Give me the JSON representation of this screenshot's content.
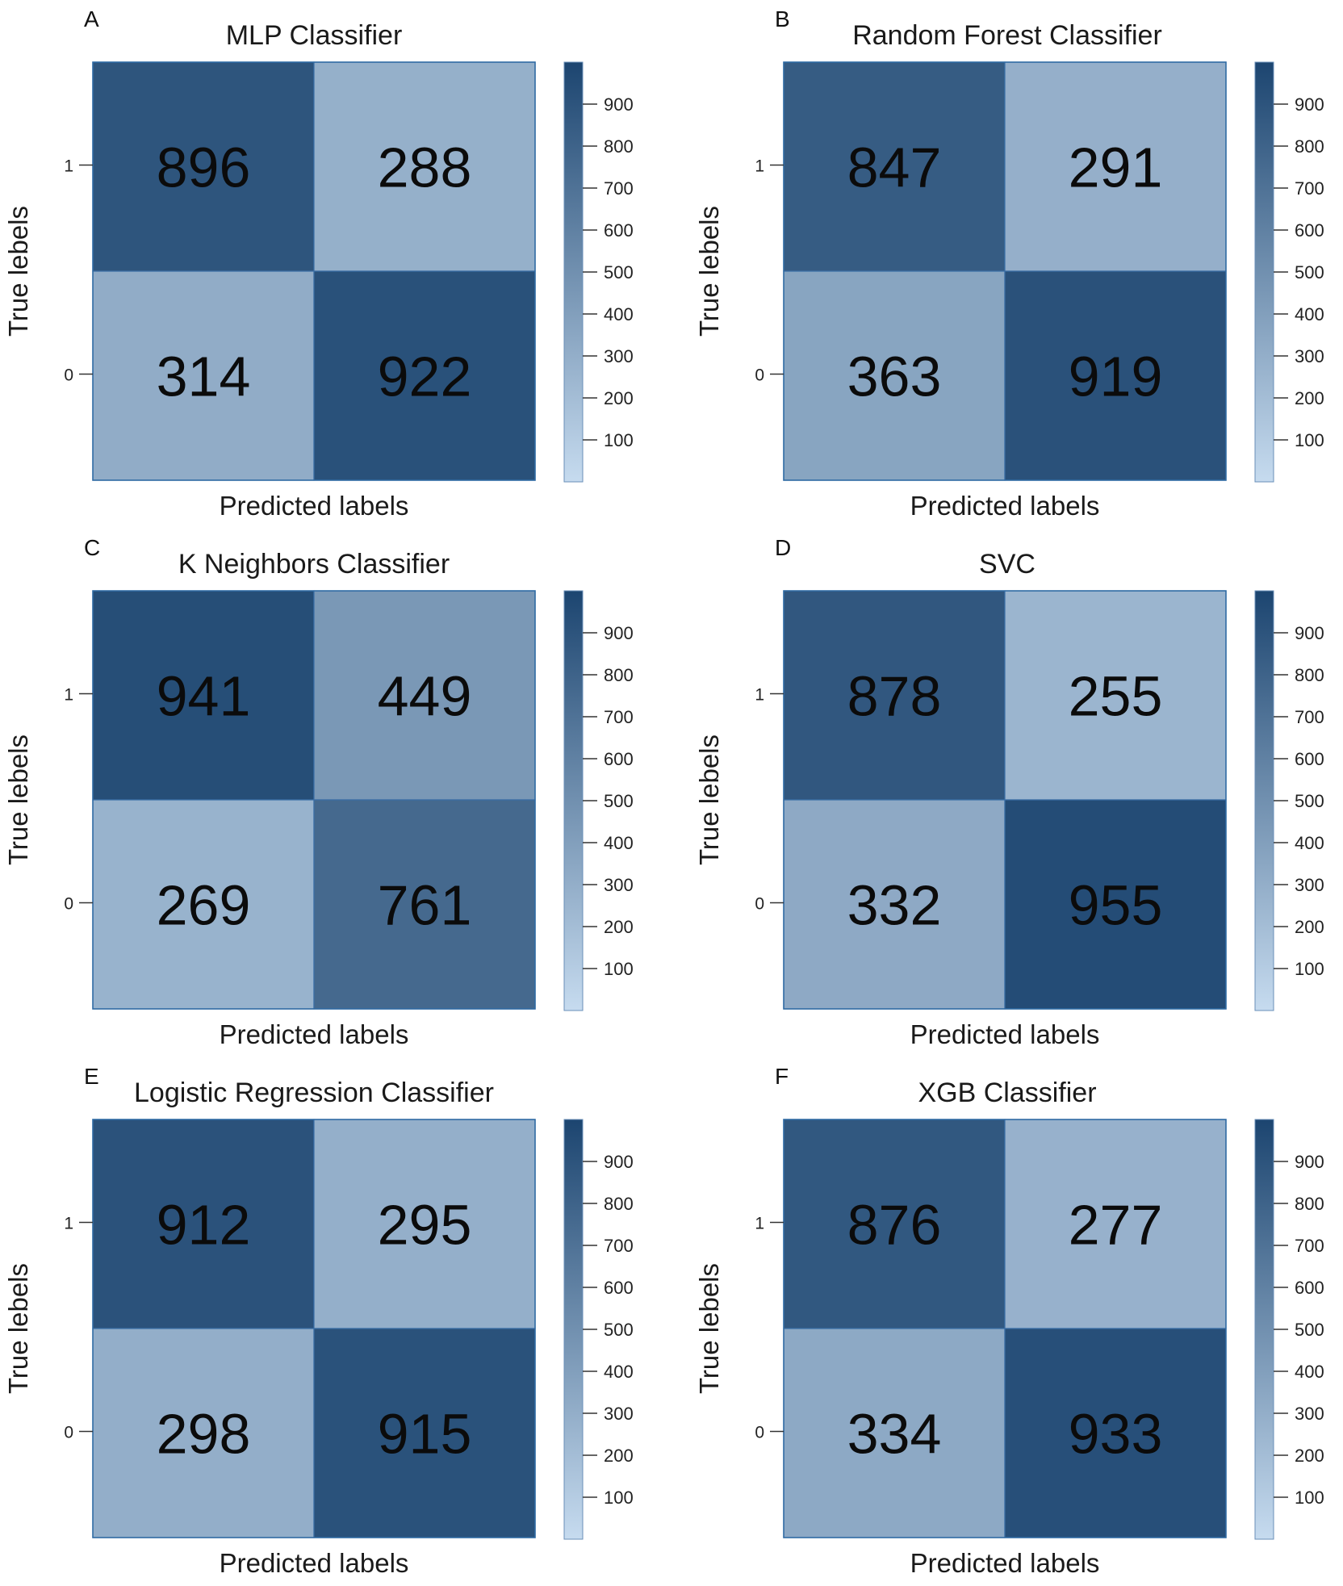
{
  "xlabel": "Predicted labels",
  "ylabel": "True lebels",
  "row_tick_labels": [
    "1",
    "0"
  ],
  "colormap": {
    "low": "#c6dbef",
    "high": "#1c4570",
    "vmin": 0,
    "vmax": 1000
  },
  "colorbar_ticks": [
    "100",
    "200",
    "300",
    "400",
    "500",
    "600",
    "700",
    "800",
    "900"
  ],
  "chart_data": [
    {
      "type": "heatmap",
      "panel": "A",
      "title": "MLP Classifier",
      "rows": [
        "1",
        "0"
      ],
      "matrix": [
        [
          896,
          288
        ],
        [
          314,
          922
        ]
      ]
    },
    {
      "type": "heatmap",
      "panel": "B",
      "title": "Random Forest Classifier",
      "rows": [
        "1",
        "0"
      ],
      "matrix": [
        [
          847,
          291
        ],
        [
          363,
          919
        ]
      ]
    },
    {
      "type": "heatmap",
      "panel": "C",
      "title": "K Neighbors Classifier",
      "rows": [
        "1",
        "0"
      ],
      "matrix": [
        [
          941,
          449
        ],
        [
          269,
          761
        ]
      ]
    },
    {
      "type": "heatmap",
      "panel": "D",
      "title": "SVC",
      "rows": [
        "1",
        "0"
      ],
      "matrix": [
        [
          878,
          255
        ],
        [
          332,
          955
        ]
      ]
    },
    {
      "type": "heatmap",
      "panel": "E",
      "title": "Logistic Regression Classifier",
      "rows": [
        "1",
        "0"
      ],
      "matrix": [
        [
          912,
          295
        ],
        [
          298,
          915
        ]
      ]
    },
    {
      "type": "heatmap",
      "panel": "F",
      "title": "XGB Classifier",
      "rows": [
        "1",
        "0"
      ],
      "matrix": [
        [
          876,
          277
        ],
        [
          334,
          933
        ]
      ]
    }
  ]
}
